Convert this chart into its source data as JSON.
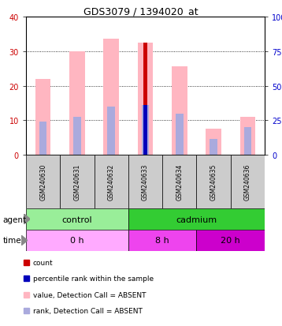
{
  "title": "GDS3079 / 1394020_at",
  "samples": [
    "GSM240630",
    "GSM240631",
    "GSM240632",
    "GSM240633",
    "GSM240634",
    "GSM240635",
    "GSM240636"
  ],
  "pink_bar_heights": [
    22,
    30,
    33.5,
    32.5,
    25.5,
    7.5,
    11
  ],
  "blue_bar_heights": [
    9.5,
    11,
    14,
    14.5,
    12,
    4.5,
    8
  ],
  "red_bar_height": 32.5,
  "red_bar_index": 3,
  "dark_blue_bar_height": 14.5,
  "dark_blue_bar_index": 3,
  "ylim_left": [
    0,
    40
  ],
  "ylim_right": [
    0,
    100
  ],
  "yticks_left": [
    0,
    10,
    20,
    30,
    40
  ],
  "yticks_right": [
    0,
    25,
    50,
    75,
    100
  ],
  "ytick_labels_right": [
    "0",
    "25",
    "50",
    "75",
    "100%"
  ],
  "pink_color": "#FFB6C1",
  "light_blue_color": "#AAAADD",
  "red_color": "#CC0000",
  "dark_blue_color": "#0000BB",
  "agent_light_green": "#99EE99",
  "agent_bright_green": "#33CC33",
  "time_light_pink": "#FFAAFF",
  "time_mid_pink": "#EE44EE",
  "time_dark_pink": "#CC00CC",
  "agent_groups": [
    {
      "label": "control",
      "start": 0,
      "end": 3,
      "color_key": "agent_light_green"
    },
    {
      "label": "cadmium",
      "start": 3,
      "end": 7,
      "color_key": "agent_bright_green"
    }
  ],
  "time_groups": [
    {
      "label": "0 h",
      "start": 0,
      "end": 3,
      "color_key": "time_light_pink"
    },
    {
      "label": "8 h",
      "start": 3,
      "end": 5,
      "color_key": "time_mid_pink"
    },
    {
      "label": "20 h",
      "start": 5,
      "end": 7,
      "color_key": "time_dark_pink"
    }
  ],
  "legend_items": [
    {
      "color": "#CC0000",
      "label": "count"
    },
    {
      "color": "#0000BB",
      "label": "percentile rank within the sample"
    },
    {
      "color": "#FFB6C1",
      "label": "value, Detection Call = ABSENT"
    },
    {
      "color": "#AAAADD",
      "label": "rank, Detection Call = ABSENT"
    }
  ],
  "gray_label_bg": "#CCCCCC",
  "background_color": "#ffffff",
  "left_axis_color": "#CC0000",
  "right_axis_color": "#0000CC"
}
